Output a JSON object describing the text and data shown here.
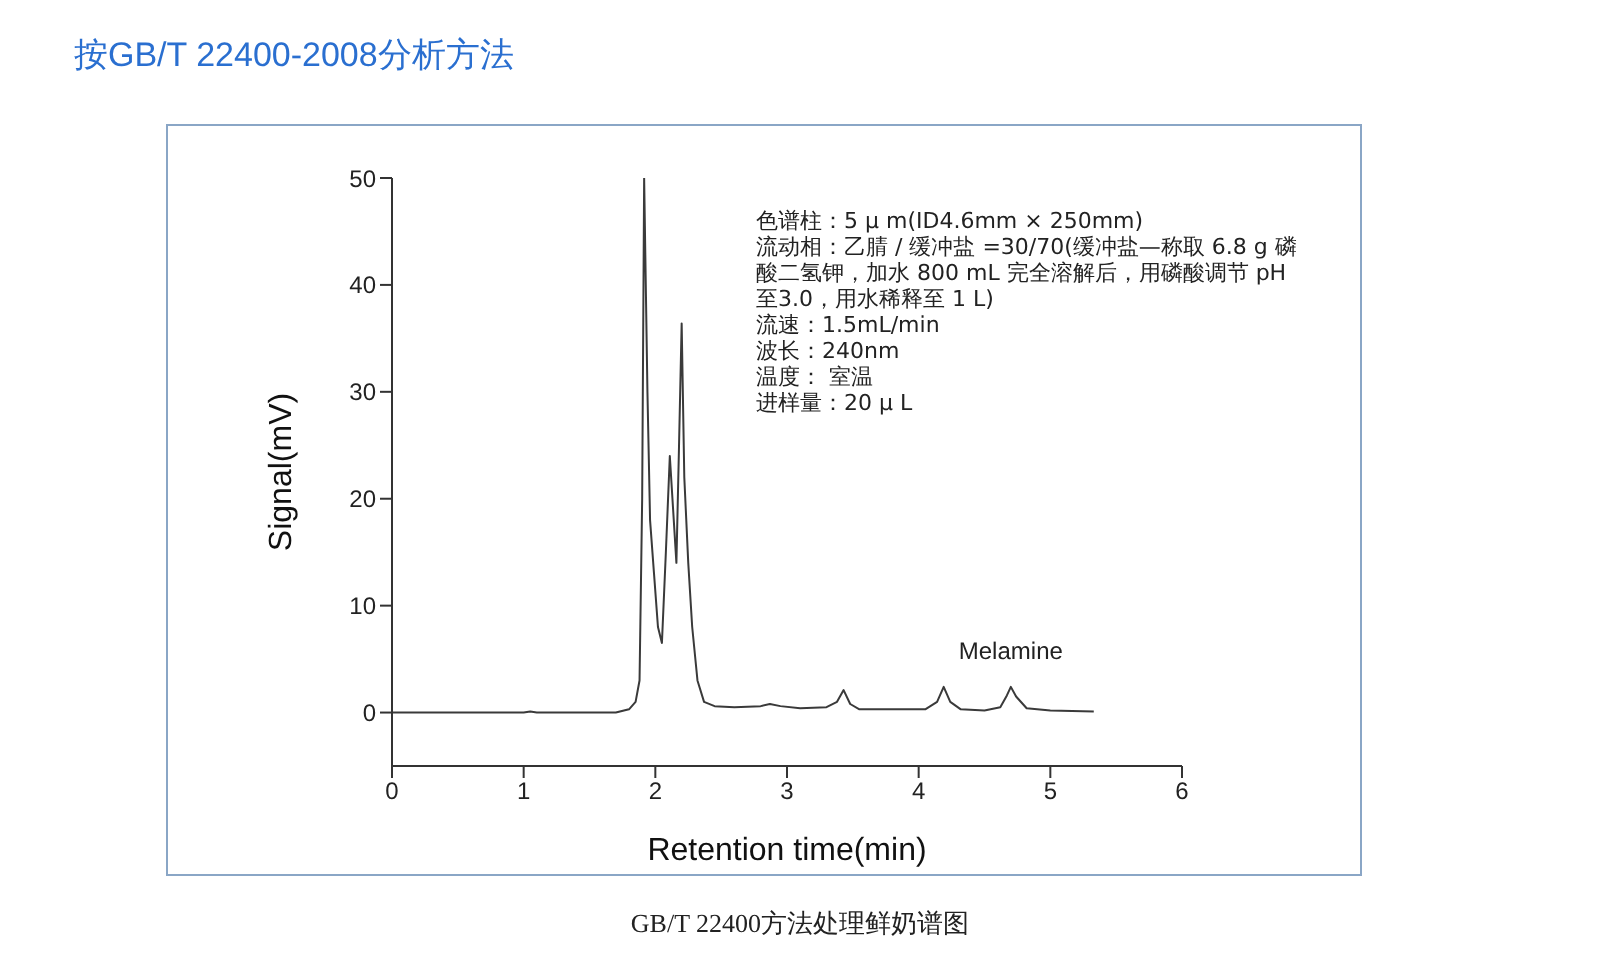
{
  "chart_data": {
    "type": "line",
    "title": "按GB/T 22400-2008分析方法",
    "xlabel": "Retention time(min)",
    "ylabel": "Signal(mV)",
    "x": [
      0,
      0.5,
      1,
      1.05,
      1.1,
      1.5,
      1.7,
      1.8,
      1.85,
      1.88,
      1.9,
      1.915,
      1.94,
      1.96,
      1.99,
      2.02,
      2.05,
      2.08,
      2.11,
      2.14,
      2.16,
      2.18,
      2.2,
      2.22,
      2.25,
      2.28,
      2.32,
      2.37,
      2.45,
      2.6,
      2.8,
      2.87,
      2.95,
      3.1,
      3.3,
      3.38,
      3.43,
      3.48,
      3.55,
      3.8,
      4.05,
      4.14,
      4.19,
      4.24,
      4.32,
      4.5,
      4.62,
      4.67,
      4.7,
      4.74,
      4.82,
      5.0,
      5.33
    ],
    "series": [
      {
        "color": "#3a3a3a",
        "values": [
          0,
          0,
          0,
          0.1,
          0,
          0,
          0,
          0.3,
          1,
          3,
          20,
          50,
          30,
          18,
          13,
          8,
          6.5,
          15,
          24,
          18,
          14,
          25,
          36.4,
          22,
          14,
          8,
          3,
          1,
          0.6,
          0.5,
          0.6,
          0.8,
          0.6,
          0.4,
          0.5,
          1,
          2.1,
          0.8,
          0.3,
          0.3,
          0.3,
          1,
          2.4,
          1,
          0.3,
          0.2,
          0.5,
          1.6,
          2.4,
          1.5,
          0.4,
          0.2,
          0.1
        ]
      }
    ],
    "xlim": [
      0,
      6
    ],
    "xticks": [
      0,
      1,
      2,
      3,
      4,
      5,
      6
    ],
    "ylim": [
      -5,
      50
    ],
    "yticks": [
      0,
      10,
      20,
      30,
      40,
      50
    ],
    "annotations": [
      "色谱柱：5 μ m(ID4.6mm × 250mm)",
      "流动相：乙腈 / 缓冲盐 =30/70(缓冲盐—称取 6.8 g 磷酸二氢钾，加水 800 mL 完全溶解后，用磷酸调节 pH 至3.0，用水稀释至 1 L)",
      "流速：1.5mL/min",
      "波长：240nm",
      "温度： 室温",
      "进样量：20 μ L",
      "GB/T 22400方法处理鲜奶谱图",
      {
        "text": "Melamine",
        "x": 4.7,
        "y": 2.4
      }
    ]
  }
}
